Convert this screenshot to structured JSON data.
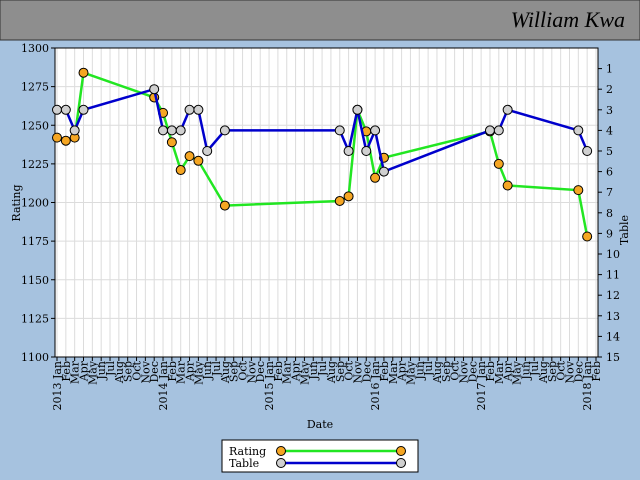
{
  "chart_data": {
    "type": "line",
    "title": "William Kwa",
    "xlabel": "Date",
    "ylabel": "Rating",
    "y2label": "Table",
    "xlim": [
      "2013-01",
      "2018-02"
    ],
    "xticks": [
      {
        "value": "2013-01",
        "label": "2013 Jan"
      },
      {
        "value": "2013-02",
        "label": "Feb"
      },
      {
        "value": "2013-03",
        "label": "Mar"
      },
      {
        "value": "2013-04",
        "label": "Apr"
      },
      {
        "value": "2013-05",
        "label": "May"
      },
      {
        "value": "2013-06",
        "label": "Jun"
      },
      {
        "value": "2013-07",
        "label": "Jul"
      },
      {
        "value": "2013-08",
        "label": "Aug"
      },
      {
        "value": "2013-09",
        "label": "Sep"
      },
      {
        "value": "2013-10",
        "label": "Oct"
      },
      {
        "value": "2013-11",
        "label": "Nov"
      },
      {
        "value": "2013-12",
        "label": "Dec"
      },
      {
        "value": "2014-01",
        "label": "2014 Jan"
      },
      {
        "value": "2014-02",
        "label": "Feb"
      },
      {
        "value": "2014-03",
        "label": "Mar"
      },
      {
        "value": "2014-04",
        "label": "Apr"
      },
      {
        "value": "2014-05",
        "label": "May"
      },
      {
        "value": "2014-06",
        "label": "Jun"
      },
      {
        "value": "2014-07",
        "label": "Jul"
      },
      {
        "value": "2014-08",
        "label": "Aug"
      },
      {
        "value": "2014-09",
        "label": "Sep"
      },
      {
        "value": "2014-10",
        "label": "Oct"
      },
      {
        "value": "2014-11",
        "label": "Nov"
      },
      {
        "value": "2014-12",
        "label": "Dec"
      },
      {
        "value": "2015-01",
        "label": "2015 Jan"
      },
      {
        "value": "2015-02",
        "label": "Feb"
      },
      {
        "value": "2015-03",
        "label": "Mar"
      },
      {
        "value": "2015-04",
        "label": "Apr"
      },
      {
        "value": "2015-05",
        "label": "May"
      },
      {
        "value": "2015-06",
        "label": "Jun"
      },
      {
        "value": "2015-07",
        "label": "Jul"
      },
      {
        "value": "2015-08",
        "label": "Aug"
      },
      {
        "value": "2015-09",
        "label": "Sep"
      },
      {
        "value": "2015-10",
        "label": "Oct"
      },
      {
        "value": "2015-11",
        "label": "Nov"
      },
      {
        "value": "2015-12",
        "label": "Dec"
      },
      {
        "value": "2016-01",
        "label": "2016 Jan"
      },
      {
        "value": "2016-02",
        "label": "Feb"
      },
      {
        "value": "2016-03",
        "label": "Mar"
      },
      {
        "value": "2016-04",
        "label": "Apr"
      },
      {
        "value": "2016-05",
        "label": "May"
      },
      {
        "value": "2016-06",
        "label": "Jun"
      },
      {
        "value": "2016-07",
        "label": "Jul"
      },
      {
        "value": "2016-08",
        "label": "Aug"
      },
      {
        "value": "2016-09",
        "label": "Sep"
      },
      {
        "value": "2016-10",
        "label": "Oct"
      },
      {
        "value": "2016-11",
        "label": "Nov"
      },
      {
        "value": "2016-12",
        "label": "Dec"
      },
      {
        "value": "2017-01",
        "label": "2017 Jan"
      },
      {
        "value": "2017-02",
        "label": "Feb"
      },
      {
        "value": "2017-03",
        "label": "Mar"
      },
      {
        "value": "2017-04",
        "label": "Apr"
      },
      {
        "value": "2017-05",
        "label": "May"
      },
      {
        "value": "2017-06",
        "label": "Jun"
      },
      {
        "value": "2017-07",
        "label": "Jul"
      },
      {
        "value": "2017-08",
        "label": "Aug"
      },
      {
        "value": "2017-09",
        "label": "Sep"
      },
      {
        "value": "2017-10",
        "label": "Oct"
      },
      {
        "value": "2017-11",
        "label": "Nov"
      },
      {
        "value": "2017-12",
        "label": "Dec"
      },
      {
        "value": "2018-01",
        "label": "2018 Jan"
      },
      {
        "value": "2018-02",
        "label": "Feb"
      }
    ],
    "ylim": [
      1100,
      1300
    ],
    "yticks": [
      1100,
      1125,
      1150,
      1175,
      1200,
      1225,
      1250,
      1275,
      1300
    ],
    "y2lim": [
      15,
      0
    ],
    "y2ticks": [
      1,
      2,
      3,
      4,
      5,
      6,
      7,
      8,
      9,
      10,
      11,
      12,
      13,
      14,
      15
    ],
    "grid": true,
    "series": [
      {
        "name": "Rating",
        "color": "#22e622",
        "marker_color": "#f5a623",
        "x": [
          "2013-01",
          "2013-02",
          "2013-03",
          "2013-04",
          "2013-12",
          "2014-01",
          "2014-02",
          "2014-03",
          "2014-04",
          "2014-05",
          "2014-08",
          "2015-09",
          "2015-10",
          "2015-11",
          "2015-12",
          "2016-01",
          "2016-02",
          "2017-02",
          "2017-03",
          "2017-04",
          "2017-12",
          "2018-01"
        ],
        "values": [
          1242,
          1240,
          1242,
          1284,
          1268,
          1258,
          1239,
          1221,
          1230,
          1227,
          1198,
          1201,
          1204,
          1260,
          1246,
          1216,
          1229,
          1246,
          1225,
          1211,
          1208,
          1178
        ]
      },
      {
        "name": "Table",
        "color": "#0000cc",
        "marker_color": "#d0d0d0",
        "axis": "y2",
        "x": [
          "2013-01",
          "2013-02",
          "2013-03",
          "2013-04",
          "2013-12",
          "2014-01",
          "2014-02",
          "2014-03",
          "2014-04",
          "2014-05",
          "2014-06",
          "2014-08",
          "2015-09",
          "2015-10",
          "2015-11",
          "2015-12",
          "2016-01",
          "2016-02",
          "2017-02",
          "2017-03",
          "2017-04",
          "2017-12",
          "2018-01"
        ],
        "values": [
          3,
          3,
          4,
          3,
          2,
          4,
          4,
          4,
          3,
          3,
          5,
          4,
          4,
          5,
          3,
          5,
          4,
          6,
          4,
          4,
          3,
          4,
          5
        ]
      }
    ]
  }
}
